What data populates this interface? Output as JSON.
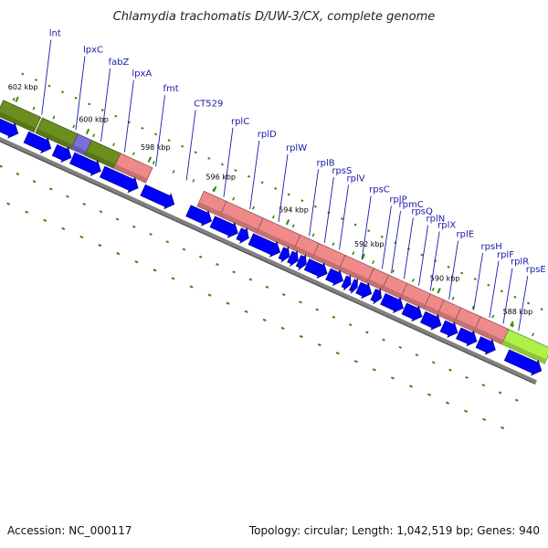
{
  "title": "Chlamydia trachomatis D/UW-3/CX, complete genome",
  "footer": {
    "accession": "Accession: NC_000117",
    "summary": "Topology: circular; Length: 1,042,519 bp; Genes: 940"
  },
  "colors": {
    "forward_olive": "#6b8f1f",
    "forward_violet": "#7b6fd8",
    "forward_pink": "#f08a8a",
    "forward_lime": "#aef04a",
    "reverse_blue": "#0000ff",
    "backbone": "#808080",
    "tick_green": "#2e8b00",
    "label_blue": "#1a1aa6"
  },
  "axis": {
    "ticks": [
      {
        "label": "602 kbp",
        "t": 0.02
      },
      {
        "label": "600 kbp",
        "t": 0.149
      },
      {
        "label": "598 kbp",
        "t": 0.262
      },
      {
        "label": "596 kbp",
        "t": 0.381
      },
      {
        "label": "594 kbp",
        "t": 0.514
      },
      {
        "label": "592 kbp",
        "t": 0.652
      },
      {
        "label": "590 kbp",
        "t": 0.79
      },
      {
        "label": "588 kbp",
        "t": 0.923
      }
    ]
  },
  "forward_features": [
    {
      "t0": 0.0,
      "t1": 0.068,
      "color": "olive"
    },
    {
      "t0": 0.071,
      "t1": 0.136,
      "color": "olive"
    },
    {
      "t0": 0.136,
      "t1": 0.161,
      "color": "violet"
    },
    {
      "t0": 0.161,
      "t1": 0.214,
      "color": "olive"
    },
    {
      "t0": 0.214,
      "t1": 0.272,
      "color": "pink"
    },
    {
      "t0": 0.366,
      "t1": 0.407,
      "color": "pink"
    },
    {
      "t0": 0.407,
      "t1": 0.474,
      "color": "pink"
    },
    {
      "t0": 0.474,
      "t1": 0.542,
      "color": "pink"
    },
    {
      "t0": 0.542,
      "t1": 0.576,
      "color": "pink"
    },
    {
      "t0": 0.576,
      "t1": 0.624,
      "color": "pink"
    },
    {
      "t0": 0.624,
      "t1": 0.676,
      "color": "pink"
    },
    {
      "t0": 0.676,
      "t1": 0.703,
      "color": "pink"
    },
    {
      "t0": 0.703,
      "t1": 0.737,
      "color": "pink"
    },
    {
      "t0": 0.737,
      "t1": 0.779,
      "color": "pink"
    },
    {
      "t0": 0.779,
      "t1": 0.804,
      "color": "pink"
    },
    {
      "t0": 0.804,
      "t1": 0.835,
      "color": "pink"
    },
    {
      "t0": 0.835,
      "t1": 0.871,
      "color": "pink"
    },
    {
      "t0": 0.871,
      "t1": 0.922,
      "color": "pink"
    },
    {
      "t0": 0.922,
      "t1": 1.0,
      "color": "lime"
    }
  ],
  "reverse_features": [
    {
      "t0": 0.0,
      "t1": 0.045
    },
    {
      "t0": 0.06,
      "t1": 0.105
    },
    {
      "t0": 0.112,
      "t1": 0.142
    },
    {
      "t0": 0.144,
      "t1": 0.196
    },
    {
      "t0": 0.199,
      "t1": 0.264
    },
    {
      "t0": 0.273,
      "t1": 0.33
    },
    {
      "t0": 0.356,
      "t1": 0.398
    },
    {
      "t0": 0.4,
      "t1": 0.446
    },
    {
      "t0": 0.448,
      "t1": 0.466
    },
    {
      "t0": 0.47,
      "t1": 0.523
    },
    {
      "t0": 0.525,
      "t1": 0.54
    },
    {
      "t0": 0.541,
      "t1": 0.556
    },
    {
      "t0": 0.557,
      "t1": 0.571
    },
    {
      "t0": 0.572,
      "t1": 0.609
    },
    {
      "t0": 0.611,
      "t1": 0.638
    },
    {
      "t0": 0.64,
      "t1": 0.652
    },
    {
      "t0": 0.654,
      "t1": 0.664
    },
    {
      "t0": 0.666,
      "t1": 0.69
    },
    {
      "t0": 0.693,
      "t1": 0.708
    },
    {
      "t0": 0.711,
      "t1": 0.748
    },
    {
      "t0": 0.75,
      "t1": 0.782
    },
    {
      "t0": 0.784,
      "t1": 0.817
    },
    {
      "t0": 0.82,
      "t1": 0.847
    },
    {
      "t0": 0.849,
      "t1": 0.882
    },
    {
      "t0": 0.885,
      "t1": 0.916
    },
    {
      "t0": 0.937,
      "t1": 1.0
    }
  ],
  "gene_labels": [
    {
      "name": "lnt",
      "t": 0.068
    },
    {
      "name": "lpxC",
      "t": 0.13
    },
    {
      "name": "fabZ",
      "t": 0.176
    },
    {
      "name": "lpxA",
      "t": 0.219
    },
    {
      "name": "fmt",
      "t": 0.276
    },
    {
      "name": "CT529",
      "t": 0.332
    },
    {
      "name": "rplC",
      "t": 0.4
    },
    {
      "name": "rplD",
      "t": 0.448
    },
    {
      "name": "rplW",
      "t": 0.5
    },
    {
      "name": "rplB",
      "t": 0.556
    },
    {
      "name": "rpsS",
      "t": 0.584
    },
    {
      "name": "rplV",
      "t": 0.611
    },
    {
      "name": "rpsC",
      "t": 0.652
    },
    {
      "name": "rplP",
      "t": 0.689
    },
    {
      "name": "rpmC",
      "t": 0.706
    },
    {
      "name": "rpsQ",
      "t": 0.729
    },
    {
      "name": "rplN",
      "t": 0.756
    },
    {
      "name": "rplX",
      "t": 0.777
    },
    {
      "name": "rplE",
      "t": 0.811
    },
    {
      "name": "rpsH",
      "t": 0.856
    },
    {
      "name": "rplF",
      "t": 0.885
    },
    {
      "name": "rplR",
      "t": 0.91
    },
    {
      "name": "rpsE",
      "t": 0.938
    }
  ]
}
